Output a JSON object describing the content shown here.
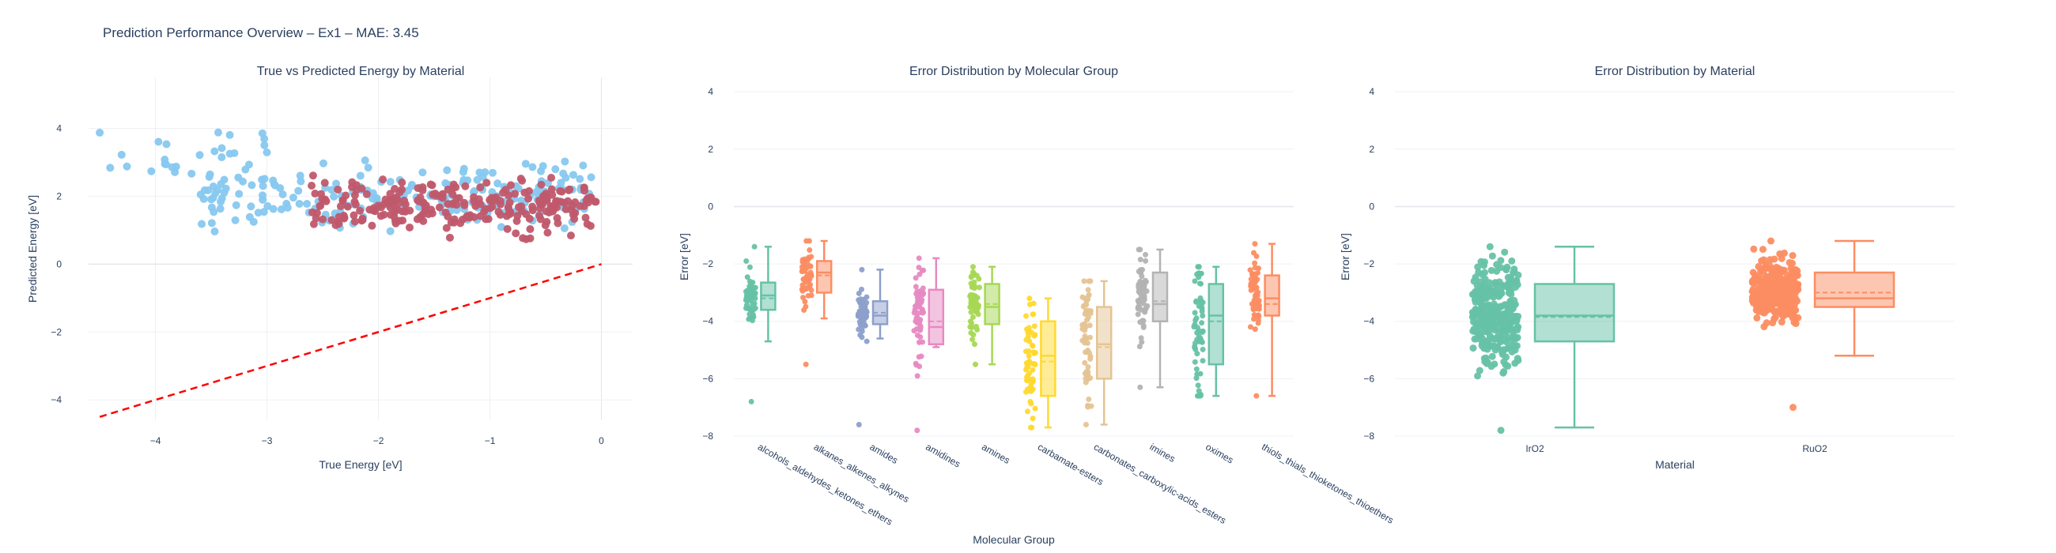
{
  "title": "Prediction Performance Overview – Ex1 – MAE: 3.45",
  "chart_data": [
    {
      "type": "scatter",
      "title": "True vs Predicted Energy by Material",
      "xlabel": "True Energy [eV]",
      "ylabel": "Predicted Energy [eV]",
      "xlim": [
        -4.6,
        0.28
      ],
      "ylim": [
        -4.6,
        5.5
      ],
      "xticks": [
        -4,
        -3,
        -2,
        -1,
        0
      ],
      "yticks": [
        -4,
        -2,
        0,
        2,
        4
      ],
      "series": [
        {
          "color": "#87c8ef",
          "cloud": {
            "x_range": [
              -4.5,
              -0.05
            ],
            "y_center": 2.0,
            "n": 240
          }
        },
        {
          "color": "#c0596b",
          "cloud": {
            "x_range": [
              -2.6,
              -0.05
            ],
            "y_center": 1.7,
            "n": 260
          }
        }
      ],
      "reference_line": {
        "x": [
          -4.5,
          0
        ],
        "y": [
          -4.5,
          0
        ],
        "color": "#ff0000",
        "dash": true
      }
    },
    {
      "type": "box",
      "title": "Error Distribution by Molecular Group",
      "xlabel": "Molecular Group",
      "ylabel": "Error [eV]",
      "ylim": [
        -8,
        4.5
      ],
      "yticks": [
        -8,
        -6,
        -4,
        -2,
        0,
        2,
        4
      ],
      "groups": [
        {
          "name": "alcohols_aldehydes_ketones_ethers",
          "color": "#66c2a5",
          "min": -4.7,
          "q1": -3.6,
          "median": -3.1,
          "mean": -3.2,
          "q3": -2.65,
          "max": -1.4,
          "points": [
            -1.4,
            -6.8
          ]
        },
        {
          "name": "alkanes_alkenes_alkynes",
          "color": "#fc8d62",
          "min": -3.9,
          "q1": -3.0,
          "median": -2.3,
          "mean": -2.4,
          "q3": -1.9,
          "max": -1.2,
          "points": [
            -1.2,
            -5.5
          ]
        },
        {
          "name": "amides",
          "color": "#8da0cb",
          "min": -4.6,
          "q1": -4.1,
          "median": -3.8,
          "mean": -3.7,
          "q3": -3.3,
          "max": -2.2,
          "points": [
            -2.2,
            -7.6
          ]
        },
        {
          "name": "amidines",
          "color": "#e78ac3",
          "min": -4.9,
          "q1": -4.8,
          "median": -4.2,
          "mean": -4.0,
          "q3": -2.9,
          "max": -1.8,
          "points": [
            -1.8,
            -7.8
          ]
        },
        {
          "name": "amines",
          "color": "#a6d854",
          "min": -5.5,
          "q1": -4.1,
          "median": -3.5,
          "mean": -3.4,
          "q3": -2.7,
          "max": -2.1,
          "points": [
            -2.1,
            -5.5
          ]
        },
        {
          "name": "carbamate-esters",
          "color": "#ffd92f",
          "min": -7.7,
          "q1": -6.6,
          "median": -5.2,
          "mean": -5.4,
          "q3": -4.0,
          "max": -3.2,
          "points": [
            -3.2,
            -7.7
          ]
        },
        {
          "name": "carbonates_carboxylic-acids_esters",
          "color": "#e5c494",
          "min": -7.6,
          "q1": -6.0,
          "median": -4.8,
          "mean": -4.9,
          "q3": -3.5,
          "max": -2.6,
          "points": [
            -2.6,
            -7.6
          ]
        },
        {
          "name": "imines",
          "color": "#b3b3b3",
          "min": -6.3,
          "q1": -4.0,
          "median": -3.4,
          "mean": -3.3,
          "q3": -2.3,
          "max": -1.5,
          "points": [
            -1.5,
            -6.3
          ]
        },
        {
          "name": "oximes",
          "color": "#66c2a5",
          "min": -6.6,
          "q1": -5.5,
          "median": -3.8,
          "mean": -4.0,
          "q3": -2.7,
          "max": -2.1,
          "points": [
            -2.1,
            -6.6
          ]
        },
        {
          "name": "thiols_thials_thioketones_thioethers",
          "color": "#fc8d62",
          "min": -6.6,
          "q1": -3.8,
          "median": -3.2,
          "mean": -3.4,
          "q3": -2.4,
          "max": -1.3,
          "points": [
            -1.3,
            -6.6
          ]
        }
      ]
    },
    {
      "type": "box",
      "title": "Error Distribution by Material",
      "xlabel": "Material",
      "ylabel": "Error [eV]",
      "ylim": [
        -8,
        4.5
      ],
      "yticks": [
        -8,
        -6,
        -4,
        -2,
        0,
        2,
        4
      ],
      "groups": [
        {
          "name": "IrO2",
          "color": "#66c2a5",
          "min": -7.7,
          "q1": -4.7,
          "median": -3.8,
          "mean": -3.85,
          "q3": -2.7,
          "max": -1.4,
          "points": [
            -1.4,
            -7.8
          ]
        },
        {
          "name": "RuO2",
          "color": "#fc8d62",
          "min": -5.2,
          "q1": -3.5,
          "median": -3.2,
          "mean": -3.0,
          "q3": -2.3,
          "max": -1.2,
          "points": [
            -1.2,
            -7.0
          ]
        }
      ]
    }
  ]
}
